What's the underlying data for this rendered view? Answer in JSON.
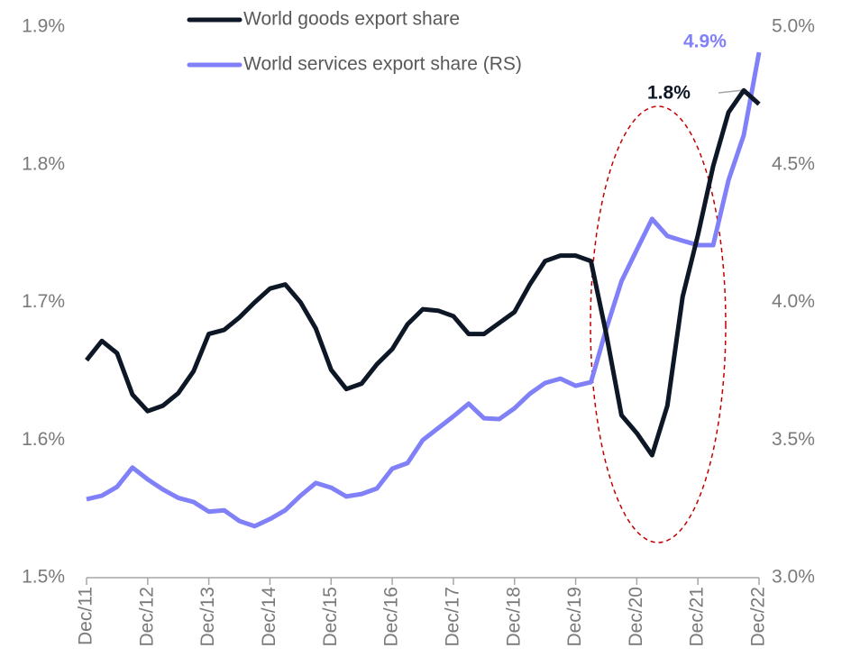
{
  "chart_data": {
    "type": "line",
    "categories": [
      "Dec/11",
      null,
      null,
      null,
      "Dec/12",
      null,
      null,
      null,
      "Dec/13",
      null,
      null,
      null,
      "Dec/14",
      null,
      null,
      null,
      "Dec/15",
      null,
      null,
      null,
      "Dec/16",
      null,
      null,
      null,
      "Dec/17",
      null,
      null,
      null,
      "Dec/18",
      null,
      null,
      null,
      "Dec/19",
      null,
      null,
      null,
      "Dec/20",
      null,
      null,
      null,
      "Dec/21",
      null,
      null,
      null,
      "Dec/22"
    ],
    "series": [
      {
        "name": "World goods export share",
        "color": "#0d1726",
        "values": [
          1.658,
          1.672,
          1.663,
          1.633,
          1.621,
          1.625,
          1.634,
          1.65,
          1.677,
          1.68,
          1.689,
          1.7,
          1.71,
          1.713,
          1.7,
          1.681,
          1.651,
          1.637,
          1.641,
          1.655,
          1.666,
          1.684,
          1.695,
          1.694,
          1.69,
          1.677,
          1.677,
          1.685,
          1.693,
          1.713,
          1.73,
          1.734,
          1.734,
          1.73,
          1.677,
          1.618,
          1.605,
          1.589,
          1.625,
          1.704,
          1.749,
          1.799,
          1.838,
          1.854,
          1.844
        ]
      },
      {
        "name": "World services export share (RS)",
        "color": "#8080f8",
        "axis": "y2",
        "values": [
          3.285,
          3.298,
          3.33,
          3.4,
          3.357,
          3.32,
          3.29,
          3.275,
          3.24,
          3.245,
          3.206,
          3.187,
          3.213,
          3.245,
          3.298,
          3.344,
          3.327,
          3.295,
          3.304,
          3.324,
          3.396,
          3.416,
          3.5,
          3.543,
          3.586,
          3.632,
          3.579,
          3.576,
          3.615,
          3.668,
          3.707,
          3.723,
          3.697,
          3.71,
          3.903,
          4.077,
          4.191,
          4.303,
          4.241,
          4.224,
          4.208,
          4.208,
          4.444,
          4.607,
          4.908
        ]
      }
    ],
    "ylim": [
      1.5,
      1.9
    ],
    "yticks": [
      {
        "value": 1.5,
        "label": "1.5%"
      },
      {
        "value": 1.6,
        "label": "1.6%"
      },
      {
        "value": 1.7,
        "label": "1.7%"
      },
      {
        "value": 1.8,
        "label": "1.8%"
      },
      {
        "value": 1.9,
        "label": "1.9%"
      }
    ],
    "y2lim": [
      3.0,
      5.0
    ],
    "y2ticks": [
      {
        "value": 3.0,
        "label": "3.0%"
      },
      {
        "value": 3.5,
        "label": "3.5%"
      },
      {
        "value": 4.0,
        "label": "4.0%"
      },
      {
        "value": 4.5,
        "label": "4.5%"
      },
      {
        "value": 5.0,
        "label": "5.0%"
      }
    ],
    "annotations": [
      "1.8%",
      "4.9%"
    ],
    "grid": false
  }
}
